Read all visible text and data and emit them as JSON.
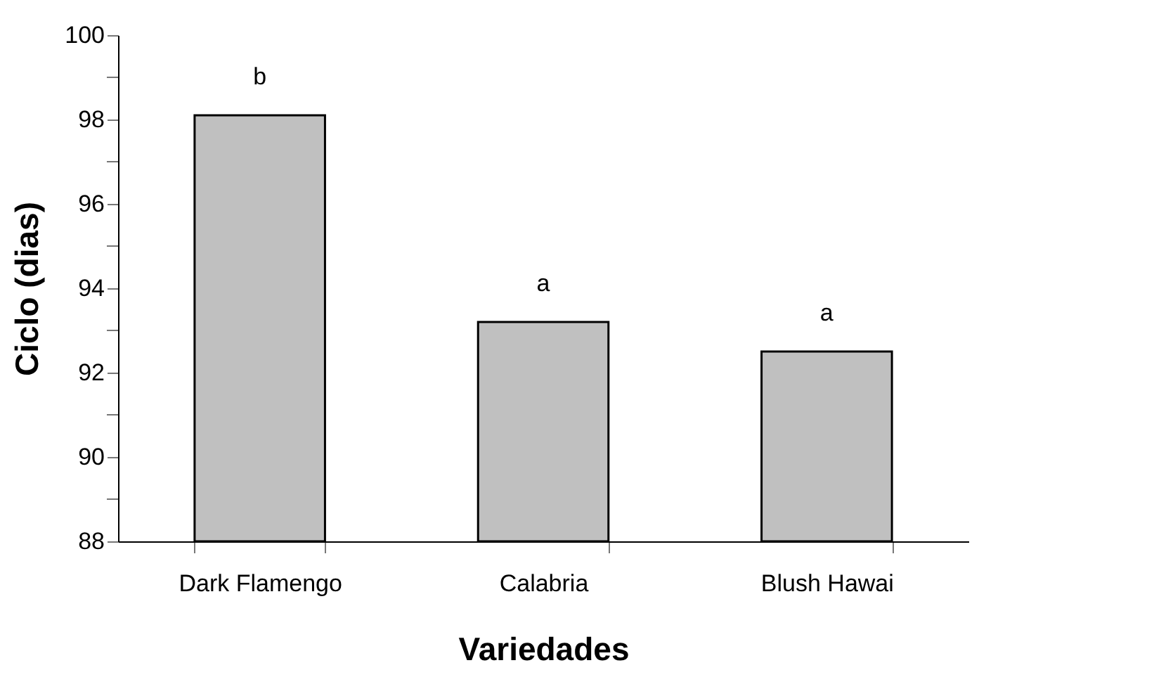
{
  "chart_data": {
    "type": "bar",
    "xlabel": "Variedades",
    "ylabel": "Ciclo (dias)",
    "categories": [
      "Dark Flamengo",
      "Calabria",
      "Blush Hawai"
    ],
    "values": [
      98.1,
      93.2,
      92.5
    ],
    "color": "#c0c0c0",
    "ylim": [
      88,
      100
    ],
    "yticks": [
      88,
      {
        "value": 89,
        "label": null
      },
      90,
      {
        "value": 91,
        "label": null
      },
      92,
      {
        "value": 93,
        "label": null
      },
      94,
      {
        "value": 95,
        "label": null
      },
      96,
      {
        "value": 97,
        "label": null
      },
      98,
      {
        "value": 99,
        "label": null
      },
      100
    ],
    "annotations": [
      {
        "text": "b",
        "x": "Dark Flamengo",
        "y": 98.1
      },
      {
        "text": "a",
        "x": "Calabria",
        "y": 93.2
      },
      {
        "text": "a",
        "x": "Blush Hawai",
        "y": 92.5
      }
    ],
    "grid": false,
    "legend": false
  }
}
